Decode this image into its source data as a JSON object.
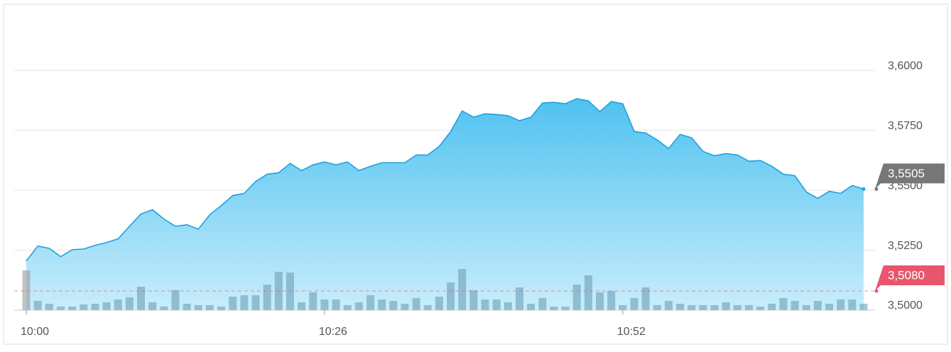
{
  "chart_data": {
    "type": "area",
    "categories": [
      "10:00",
      null,
      null,
      null,
      null,
      null,
      null,
      null,
      null,
      null,
      null,
      null,
      null,
      null,
      null,
      null,
      null,
      null,
      null,
      null,
      null,
      null,
      null,
      null,
      null,
      null,
      "10:26",
      null,
      null,
      null,
      null,
      null,
      null,
      null,
      null,
      null,
      null,
      null,
      null,
      null,
      null,
      null,
      null,
      null,
      null,
      null,
      null,
      null,
      null,
      null,
      null,
      null,
      "10:52",
      null,
      null,
      null,
      null,
      null,
      null,
      null,
      null,
      null,
      null,
      null,
      null,
      null,
      null,
      null,
      null,
      null,
      null,
      null,
      null,
      null
    ],
    "series": [
      {
        "color": "#1ea0e0",
        "values": [
          3.5205,
          3.5267,
          3.5258,
          3.5223,
          3.5252,
          3.5255,
          3.527,
          3.5282,
          3.5297,
          3.535,
          3.5401,
          3.5419,
          3.538,
          3.535,
          3.5356,
          3.5338,
          3.5398,
          3.5436,
          3.5478,
          3.5487,
          3.5537,
          3.5567,
          3.5573,
          3.5612,
          3.5582,
          3.5606,
          3.5618,
          3.5606,
          3.5618,
          3.5582,
          3.56,
          3.5615,
          3.5615,
          3.5615,
          3.5647,
          3.5647,
          3.5683,
          3.5745,
          3.5831,
          3.5805,
          3.5819,
          3.5816,
          3.5811,
          3.579,
          3.5805,
          3.5864,
          3.5867,
          3.5861,
          3.5882,
          3.5873,
          3.5828,
          3.587,
          3.5861,
          3.5745,
          3.5739,
          3.571,
          3.5674,
          3.5733,
          3.5719,
          3.5662,
          3.5644,
          3.5653,
          3.5647,
          3.5621,
          3.5624,
          3.56,
          3.5567,
          3.5561,
          3.5493,
          3.5466,
          3.5496,
          3.5487,
          3.552,
          3.5505
        ]
      },
      {
        "type": "bar",
        "axis": "y2",
        "color": "#6c9fb8",
        "values": [
          56,
          13,
          9,
          5,
          5,
          8,
          9,
          11,
          15,
          18,
          33,
          11,
          5,
          28,
          9,
          7,
          7,
          5,
          19,
          21,
          21,
          36,
          54,
          53,
          11,
          25,
          15,
          15,
          7,
          11,
          21,
          15,
          13,
          9,
          17,
          7,
          19,
          39,
          58,
          28,
          15,
          15,
          11,
          32,
          9,
          17,
          5,
          5,
          36,
          49,
          25,
          27,
          7,
          17,
          32,
          7,
          13,
          9,
          7,
          7,
          7,
          11,
          7,
          7,
          5,
          9,
          17,
          13,
          7,
          13,
          9,
          15,
          15,
          9
        ]
      }
    ],
    "ylim": [
      3.5,
      3.627
    ],
    "yticks": [
      {
        "value": 3.5,
        "label": "3,5000"
      },
      {
        "value": 3.525,
        "label": "3,5250"
      },
      {
        "value": 3.55,
        "label": "3,5500"
      },
      {
        "value": 3.575,
        "label": "3,5750"
      },
      {
        "value": 3.6,
        "label": "3,6000"
      }
    ],
    "y2lim": [
      0,
      429
    ],
    "grid": true,
    "last_price": {
      "value": 3.5505,
      "label": "3,5505",
      "color": "#777777"
    },
    "reference_line": {
      "value": 3.508,
      "label": "3,5080",
      "color": "#e8566e"
    }
  }
}
